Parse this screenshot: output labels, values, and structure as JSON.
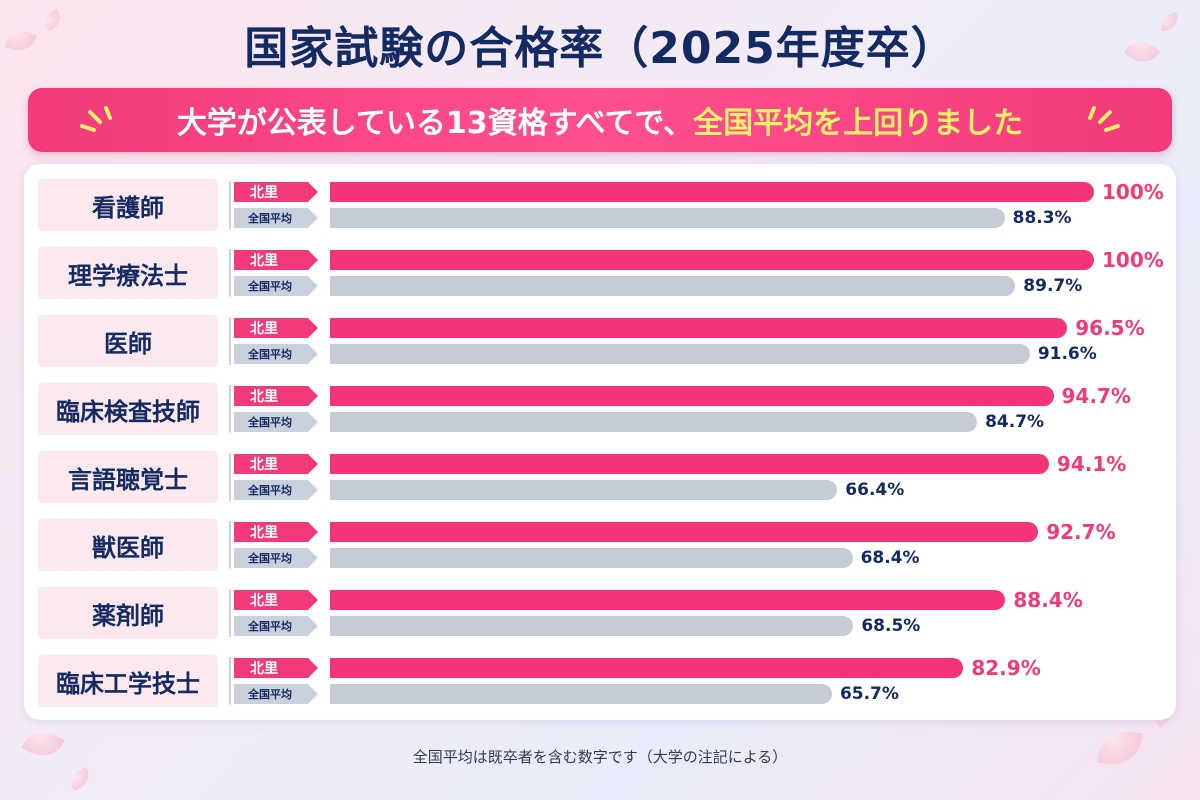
{
  "title": "国家試験の合格率（2025年度卒）",
  "banner": {
    "text_main": "大学が公表している13資格すべてで、",
    "text_highlight": "全国平均を上回りました"
  },
  "footnote": "全国平均は既卒者を含む数字です（大学の注記による）",
  "colors": {
    "kitasato": "#f4337a",
    "national": "#c5ccd6",
    "title": "#132a63"
  },
  "chart_data": {
    "type": "bar",
    "orientation": "horizontal",
    "xlim": [
      0,
      100
    ],
    "categories": [
      "看護師",
      "理学療法士",
      "医師",
      "臨床検査技師",
      "言語聴覚士",
      "獣医師",
      "薬剤師",
      "臨床工学技士"
    ],
    "series": [
      {
        "name": "北里",
        "values": [
          100,
          100,
          96.5,
          94.7,
          94.1,
          92.7,
          88.4,
          82.9
        ],
        "labels": [
          "100%",
          "100%",
          "96.5%",
          "94.7%",
          "94.1%",
          "92.7%",
          "88.4%",
          "82.9%"
        ]
      },
      {
        "name": "全国平均",
        "values": [
          88.3,
          89.7,
          91.6,
          84.7,
          66.4,
          68.4,
          68.5,
          65.7
        ],
        "labels": [
          "88.3%",
          "89.7%",
          "91.6%",
          "84.7%",
          "66.4%",
          "68.4%",
          "68.5%",
          "65.7%"
        ]
      }
    ]
  }
}
